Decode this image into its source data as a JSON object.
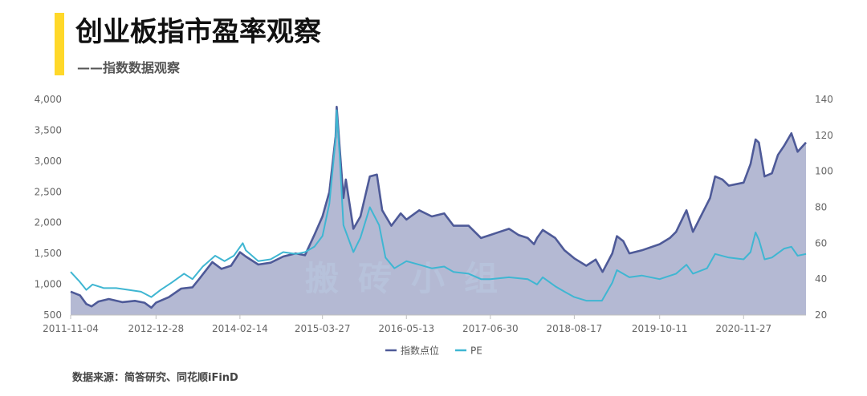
{
  "header": {
    "title": "创业板指市盈率观察",
    "subtitle": "——指数数据观察",
    "accent_color": "#FFD829"
  },
  "watermark": "搬砖小组",
  "footer": {
    "source": "数据来源：简答研究、同花顺iFinD"
  },
  "chart_data": {
    "type": "area",
    "title": "",
    "xlabel": "",
    "ylabel": "",
    "x_ticks": [
      "2011-11-04",
      "2012-12-28",
      "2014-02-14",
      "2015-03-27",
      "2016-05-13",
      "2017-06-30",
      "2018-08-17",
      "2019-10-11",
      "2020-11-27"
    ],
    "x_range": [
      "2011-11-04",
      "2021-09-30"
    ],
    "y_left": {
      "ticks": [
        "4,000",
        "3,500",
        "3,000",
        "2,500",
        "2,000",
        "1,500",
        "1,000",
        "500"
      ],
      "min": 500,
      "max": 4000
    },
    "y_right": {
      "ticks": [
        "140",
        "120",
        "100",
        "80",
        "60",
        "40",
        "20"
      ],
      "min": 20,
      "max": 140
    },
    "grid": false,
    "legend_position": "bottom",
    "series": [
      {
        "name": "指数点位",
        "axis": "left",
        "style": "area",
        "color": "#4E5A98",
        "fill": "#B4B9D3",
        "points": [
          [
            "2011-11-04",
            880
          ],
          [
            "2011-12-20",
            820
          ],
          [
            "2012-01-20",
            680
          ],
          [
            "2012-02-15",
            640
          ],
          [
            "2012-03-20",
            720
          ],
          [
            "2012-05-10",
            760
          ],
          [
            "2012-07-15",
            710
          ],
          [
            "2012-09-15",
            730
          ],
          [
            "2012-11-01",
            700
          ],
          [
            "2012-12-05",
            620
          ],
          [
            "2012-12-28",
            700
          ],
          [
            "2013-03-01",
            790
          ],
          [
            "2013-05-01",
            930
          ],
          [
            "2013-06-25",
            950
          ],
          [
            "2013-08-01",
            1100
          ],
          [
            "2013-10-01",
            1360
          ],
          [
            "2013-11-15",
            1250
          ],
          [
            "2014-01-01",
            1300
          ],
          [
            "2014-02-14",
            1520
          ],
          [
            "2014-03-15",
            1450
          ],
          [
            "2014-05-15",
            1320
          ],
          [
            "2014-07-15",
            1350
          ],
          [
            "2014-09-15",
            1450
          ],
          [
            "2014-11-15",
            1500
          ],
          [
            "2014-12-31",
            1470
          ],
          [
            "2015-02-15",
            1800
          ],
          [
            "2015-03-27",
            2100
          ],
          [
            "2015-04-30",
            2500
          ],
          [
            "2015-05-31",
            3400
          ],
          [
            "2015-06-05",
            3880
          ],
          [
            "2015-06-20",
            3200
          ],
          [
            "2015-07-08",
            2400
          ],
          [
            "2015-07-20",
            2700
          ],
          [
            "2015-08-26",
            1900
          ],
          [
            "2015-09-30",
            2100
          ],
          [
            "2015-11-15",
            2750
          ],
          [
            "2015-12-20",
            2780
          ],
          [
            "2016-01-15",
            2200
          ],
          [
            "2016-02-29",
            1950
          ],
          [
            "2016-04-15",
            2150
          ],
          [
            "2016-05-13",
            2050
          ],
          [
            "2016-07-15",
            2200
          ],
          [
            "2016-09-15",
            2100
          ],
          [
            "2016-11-15",
            2150
          ],
          [
            "2016-12-31",
            1950
          ],
          [
            "2017-03-15",
            1950
          ],
          [
            "2017-05-15",
            1750
          ],
          [
            "2017-06-30",
            1800
          ],
          [
            "2017-08-15",
            1850
          ],
          [
            "2017-09-30",
            1900
          ],
          [
            "2017-11-15",
            1800
          ],
          [
            "2017-12-31",
            1750
          ],
          [
            "2018-01-31",
            1650
          ],
          [
            "2018-02-15",
            1750
          ],
          [
            "2018-03-15",
            1880
          ],
          [
            "2018-05-15",
            1750
          ],
          [
            "2018-06-30",
            1550
          ],
          [
            "2018-08-17",
            1420
          ],
          [
            "2018-10-15",
            1300
          ],
          [
            "2018-11-30",
            1400
          ],
          [
            "2019-01-03",
            1200
          ],
          [
            "2019-02-20",
            1500
          ],
          [
            "2019-03-15",
            1780
          ],
          [
            "2019-04-15",
            1700
          ],
          [
            "2019-05-15",
            1500
          ],
          [
            "2019-07-15",
            1550
          ],
          [
            "2019-10-11",
            1650
          ],
          [
            "2019-11-30",
            1750
          ],
          [
            "2019-12-31",
            1850
          ],
          [
            "2020-02-20",
            2200
          ],
          [
            "2020-03-23",
            1850
          ],
          [
            "2020-04-30",
            2100
          ],
          [
            "2020-06-15",
            2400
          ],
          [
            "2020-07-10",
            2750
          ],
          [
            "2020-08-15",
            2700
          ],
          [
            "2020-09-15",
            2600
          ],
          [
            "2020-11-27",
            2650
          ],
          [
            "2020-12-31",
            2950
          ],
          [
            "2021-01-25",
            3350
          ],
          [
            "2021-02-10",
            3300
          ],
          [
            "2021-03-10",
            2750
          ],
          [
            "2021-04-15",
            2800
          ],
          [
            "2021-05-15",
            3100
          ],
          [
            "2021-06-15",
            3250
          ],
          [
            "2021-07-20",
            3450
          ],
          [
            "2021-08-20",
            3150
          ],
          [
            "2021-09-30",
            3300
          ]
        ]
      },
      {
        "name": "PE",
        "axis": "right",
        "style": "line",
        "color": "#3FB6D2",
        "points": [
          [
            "2011-11-04",
            44
          ],
          [
            "2011-12-15",
            39
          ],
          [
            "2012-01-20",
            34
          ],
          [
            "2012-02-20",
            37
          ],
          [
            "2012-04-15",
            35
          ],
          [
            "2012-06-15",
            35
          ],
          [
            "2012-08-15",
            34
          ],
          [
            "2012-10-15",
            33
          ],
          [
            "2012-12-05",
            30
          ],
          [
            "2013-01-20",
            34
          ],
          [
            "2013-03-15",
            38
          ],
          [
            "2013-05-15",
            43
          ],
          [
            "2013-06-25",
            40
          ],
          [
            "2013-08-15",
            47
          ],
          [
            "2013-10-15",
            53
          ],
          [
            "2013-11-30",
            50
          ],
          [
            "2014-01-15",
            53
          ],
          [
            "2014-02-28",
            60
          ],
          [
            "2014-03-15",
            56
          ],
          [
            "2014-05-15",
            50
          ],
          [
            "2014-07-15",
            51
          ],
          [
            "2014-09-15",
            55
          ],
          [
            "2014-11-15",
            54
          ],
          [
            "2014-12-31",
            55
          ],
          [
            "2015-02-15",
            58
          ],
          [
            "2015-03-27",
            64
          ],
          [
            "2015-04-30",
            82
          ],
          [
            "2015-05-31",
            118
          ],
          [
            "2015-06-05",
            134
          ],
          [
            "2015-06-20",
            108
          ],
          [
            "2015-07-08",
            70
          ],
          [
            "2015-08-26",
            55
          ],
          [
            "2015-09-30",
            63
          ],
          [
            "2015-11-15",
            80
          ],
          [
            "2015-12-31",
            70
          ],
          [
            "2016-01-31",
            52
          ],
          [
            "2016-03-15",
            46
          ],
          [
            "2016-05-13",
            50
          ],
          [
            "2016-07-15",
            48
          ],
          [
            "2016-09-15",
            46
          ],
          [
            "2016-11-15",
            47
          ],
          [
            "2016-12-31",
            44
          ],
          [
            "2017-03-15",
            43
          ],
          [
            "2017-05-15",
            40
          ],
          [
            "2017-06-30",
            40
          ],
          [
            "2017-09-30",
            41
          ],
          [
            "2017-12-31",
            40
          ],
          [
            "2018-02-15",
            37
          ],
          [
            "2018-03-15",
            41
          ],
          [
            "2018-05-15",
            36
          ],
          [
            "2018-06-30",
            33
          ],
          [
            "2018-08-17",
            30
          ],
          [
            "2018-10-15",
            28
          ],
          [
            "2018-12-31",
            28
          ],
          [
            "2019-02-20",
            38
          ],
          [
            "2019-03-15",
            45
          ],
          [
            "2019-05-15",
            41
          ],
          [
            "2019-07-15",
            42
          ],
          [
            "2019-10-11",
            40
          ],
          [
            "2019-12-31",
            43
          ],
          [
            "2020-02-20",
            48
          ],
          [
            "2020-03-23",
            43
          ],
          [
            "2020-05-31",
            46
          ],
          [
            "2020-07-10",
            54
          ],
          [
            "2020-09-15",
            52
          ],
          [
            "2020-11-27",
            51
          ],
          [
            "2020-12-31",
            55
          ],
          [
            "2021-01-25",
            66
          ],
          [
            "2021-02-10",
            62
          ],
          [
            "2021-03-10",
            51
          ],
          [
            "2021-04-15",
            52
          ],
          [
            "2021-06-15",
            57
          ],
          [
            "2021-07-20",
            58
          ],
          [
            "2021-08-20",
            53
          ],
          [
            "2021-09-30",
            54
          ]
        ]
      }
    ]
  }
}
